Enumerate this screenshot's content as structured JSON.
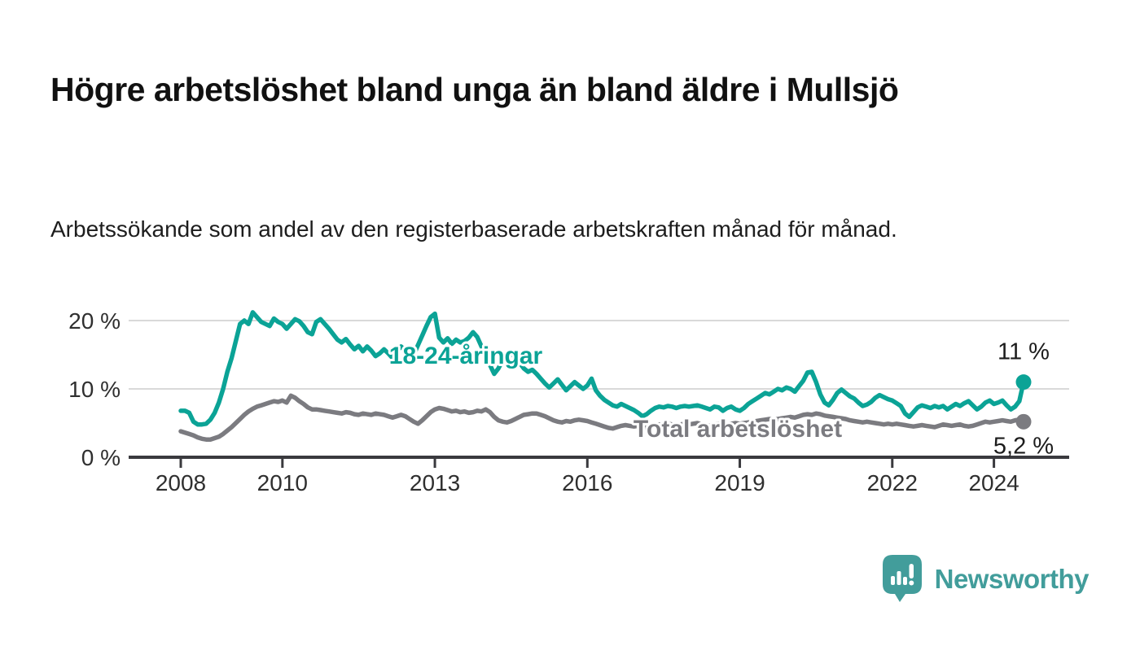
{
  "header": {
    "title": "Högre arbetslöshet bland unga än bland äldre i Mullsjö",
    "subtitle": "Arbetssökande som andel av den registerbaserade arbetskraften månad för månad."
  },
  "chart_data": {
    "type": "line",
    "unit": "%",
    "frequency": "monthly",
    "x_start": "2008-01",
    "x_end": "2024-08",
    "ylim": [
      0,
      22
    ],
    "grid": "horizontal",
    "yticks": [
      {
        "value": 0,
        "label": "0 %"
      },
      {
        "value": 10,
        "label": "10 %"
      },
      {
        "value": 20,
        "label": "20 %"
      }
    ],
    "xticks": [
      {
        "year": 2008,
        "label": "2008"
      },
      {
        "year": 2010,
        "label": "2010"
      },
      {
        "year": 2013,
        "label": "2013"
      },
      {
        "year": 2016,
        "label": "2016"
      },
      {
        "year": 2019,
        "label": "2019"
      },
      {
        "year": 2022,
        "label": "2022"
      },
      {
        "year": 2024,
        "label": "2024"
      }
    ],
    "series": [
      {
        "name": "Total arbetslöshet",
        "color": "#7b7b80",
        "end_label": "5,2 %",
        "end_value": 5.2,
        "end_label_position": "below",
        "values": [
          3.8,
          3.6,
          3.4,
          3.2,
          2.9,
          2.7,
          2.6,
          2.6,
          2.8,
          3.0,
          3.4,
          3.9,
          4.4,
          5.0,
          5.6,
          6.2,
          6.7,
          7.1,
          7.4,
          7.6,
          7.8,
          8.0,
          8.2,
          8.1,
          8.3,
          8.0,
          9.0,
          8.7,
          8.2,
          7.8,
          7.3,
          7.0,
          7.0,
          6.9,
          6.8,
          6.7,
          6.6,
          6.5,
          6.4,
          6.6,
          6.5,
          6.3,
          6.2,
          6.4,
          6.3,
          6.2,
          6.4,
          6.3,
          6.2,
          6.0,
          5.8,
          6.0,
          6.2,
          6.0,
          5.6,
          5.2,
          4.9,
          5.4,
          6.0,
          6.6,
          7.0,
          7.2,
          7.1,
          6.9,
          6.7,
          6.8,
          6.6,
          6.7,
          6.5,
          6.6,
          6.8,
          6.7,
          7.0,
          6.6,
          5.9,
          5.4,
          5.2,
          5.1,
          5.3,
          5.6,
          5.9,
          6.2,
          6.3,
          6.4,
          6.4,
          6.2,
          6.0,
          5.7,
          5.4,
          5.2,
          5.1,
          5.3,
          5.2,
          5.4,
          5.5,
          5.4,
          5.3,
          5.1,
          4.9,
          4.7,
          4.5,
          4.3,
          4.2,
          4.4,
          4.6,
          4.7,
          4.6,
          4.5,
          4.6,
          4.4,
          4.3,
          4.5,
          4.6,
          4.8,
          4.7,
          4.9,
          4.8,
          4.7,
          4.8,
          4.9,
          4.8,
          4.9,
          5.0,
          4.8,
          4.7,
          4.6,
          4.8,
          4.9,
          4.7,
          4.8,
          4.9,
          5.0,
          4.9,
          5.0,
          5.1,
          5.2,
          5.3,
          5.4,
          5.5,
          5.6,
          5.5,
          5.6,
          5.7,
          5.8,
          5.9,
          5.8,
          6.0,
          6.2,
          6.3,
          6.2,
          6.4,
          6.3,
          6.1,
          6.0,
          5.9,
          5.8,
          5.7,
          5.6,
          5.4,
          5.3,
          5.2,
          5.1,
          5.2,
          5.1,
          5.0,
          4.9,
          4.8,
          4.9,
          4.8,
          4.9,
          4.8,
          4.7,
          4.6,
          4.5,
          4.6,
          4.7,
          4.6,
          4.5,
          4.4,
          4.6,
          4.8,
          4.7,
          4.6,
          4.7,
          4.8,
          4.6,
          4.5,
          4.6,
          4.8,
          5.0,
          5.2,
          5.1,
          5.2,
          5.3,
          5.4,
          5.3,
          5.2,
          5.4,
          5.5,
          5.2
        ]
      },
      {
        "name": "18-24-åringar",
        "color": "#0ba396",
        "end_label": "11 %",
        "end_value": 11,
        "end_label_position": "above",
        "values": [
          6.8,
          6.8,
          6.5,
          5.2,
          4.8,
          4.8,
          4.9,
          5.5,
          6.5,
          8.0,
          10.0,
          12.5,
          14.5,
          17.0,
          19.5,
          20.0,
          19.5,
          21.2,
          20.5,
          19.8,
          19.5,
          19.2,
          20.3,
          19.8,
          19.5,
          18.8,
          19.5,
          20.2,
          19.9,
          19.2,
          18.3,
          18.0,
          19.8,
          20.2,
          19.5,
          18.8,
          18.0,
          17.2,
          16.8,
          17.3,
          16.5,
          15.8,
          16.3,
          15.5,
          16.2,
          15.6,
          14.8,
          15.2,
          15.8,
          15.2,
          14.5,
          15.5,
          16.2,
          15.6,
          14.3,
          15.0,
          16.4,
          17.8,
          19.2,
          20.5,
          21.0,
          17.5,
          16.8,
          17.4,
          16.6,
          17.2,
          16.8,
          17.0,
          17.5,
          18.3,
          17.6,
          16.2,
          15.0,
          13.5,
          12.2,
          13.0,
          14.2,
          14.8,
          15.2,
          14.6,
          13.8,
          13.0,
          12.5,
          12.8,
          12.2,
          11.5,
          10.8,
          10.2,
          10.8,
          11.4,
          10.6,
          9.8,
          10.4,
          11.0,
          10.5,
          10.0,
          10.5,
          11.5,
          9.8,
          9.0,
          8.4,
          8.0,
          7.6,
          7.4,
          7.8,
          7.5,
          7.2,
          6.9,
          6.5,
          6.0,
          6.3,
          6.8,
          7.2,
          7.4,
          7.3,
          7.5,
          7.4,
          7.2,
          7.4,
          7.5,
          7.4,
          7.5,
          7.6,
          7.4,
          7.2,
          7.0,
          7.4,
          7.3,
          6.8,
          7.2,
          7.4,
          7.0,
          6.8,
          7.2,
          7.8,
          8.2,
          8.6,
          9.0,
          9.4,
          9.2,
          9.6,
          10.0,
          9.8,
          10.2,
          10.0,
          9.6,
          10.4,
          11.2,
          12.4,
          12.5,
          11.0,
          9.2,
          8.0,
          7.6,
          8.4,
          9.4,
          9.9,
          9.4,
          8.9,
          8.6,
          8.0,
          7.5,
          7.7,
          8.1,
          8.7,
          9.1,
          8.8,
          8.5,
          8.3,
          7.9,
          7.5,
          6.4,
          5.9,
          6.6,
          7.3,
          7.6,
          7.4,
          7.2,
          7.5,
          7.3,
          7.5,
          7.0,
          7.4,
          7.8,
          7.5,
          7.9,
          8.2,
          7.6,
          7.0,
          7.4,
          8.0,
          8.3,
          7.8,
          8.0,
          8.3,
          7.6,
          7.0,
          7.4,
          8.2,
          11.0
        ]
      }
    ]
  },
  "footer": {
    "brand": "Newsworthy",
    "brand_color": "#429d9b",
    "icon": "newsworthy-speech-bubble-bar-chart"
  }
}
